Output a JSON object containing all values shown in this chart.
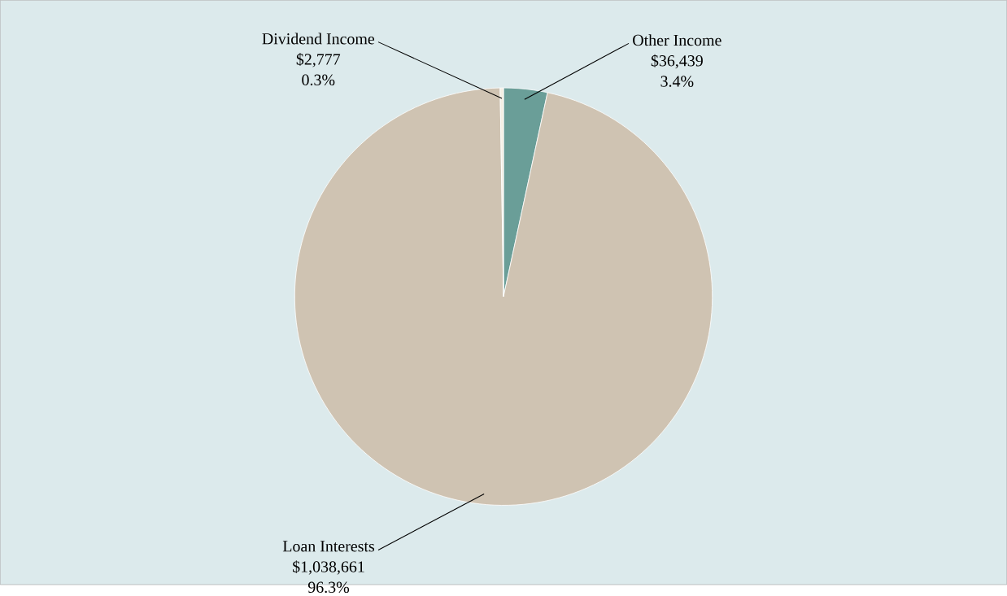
{
  "chart_data": {
    "type": "pie",
    "categories": [
      "Other Income",
      "Loan Interests",
      "Dividend Income"
    ],
    "values": [
      36439,
      1038661,
      2777
    ],
    "colors": [
      "#6a9e98",
      "#cfc3b2",
      "#f4efe4"
    ],
    "value_labels": [
      "$36,439",
      "$1,038,661",
      "$2,777"
    ],
    "annotations": [
      "3.4%",
      "96.3%",
      "0.3%"
    ]
  }
}
